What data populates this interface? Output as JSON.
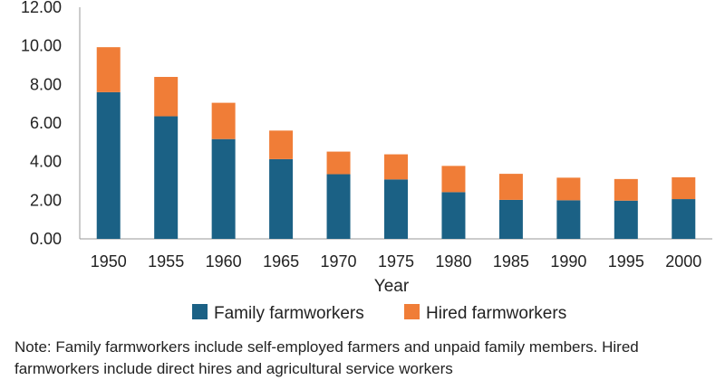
{
  "chart_data": {
    "type": "bar",
    "stacked": true,
    "categories": [
      "1950",
      "1955",
      "1960",
      "1965",
      "1970",
      "1975",
      "1980",
      "1985",
      "1990",
      "1995",
      "2000"
    ],
    "series": [
      {
        "name": "Family farmworkers",
        "color": "#1b6185",
        "values": [
          7.6,
          6.35,
          5.17,
          4.13,
          3.35,
          3.08,
          2.42,
          2.02,
          2.0,
          1.98,
          2.06
        ]
      },
      {
        "name": "Hired farmworkers",
        "color": "#f07d37",
        "values": [
          2.33,
          2.04,
          1.88,
          1.48,
          1.17,
          1.3,
          1.36,
          1.35,
          1.17,
          1.12,
          1.13
        ]
      }
    ],
    "xlabel": "Year",
    "ylabel": "",
    "ylim": [
      0,
      12
    ],
    "yticks": [
      "0.00",
      "2.00",
      "4.00",
      "6.00",
      "8.00",
      "10.00",
      "12.00"
    ],
    "grid": false,
    "legend_position": "bottom"
  },
  "note": "Note: Family farmworkers include self-employed farmers and unpaid family members. Hired farmworkers include direct hires and agricultural service workers"
}
